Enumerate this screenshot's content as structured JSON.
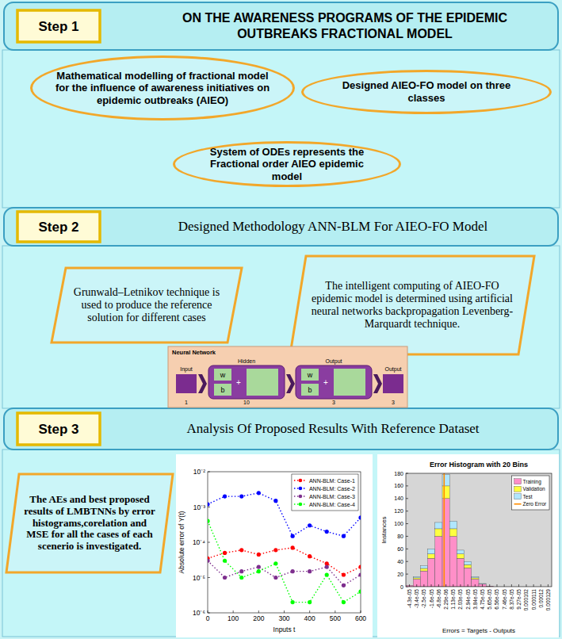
{
  "steps": [
    {
      "label": "Step 1",
      "title": "ON THE AWARENESS PROGRAMS OF THE EPIDEMIC OUTBREAKS FRACTIONAL MODEL",
      "boxes": [
        "Mathematical modelling of fractional model for the influence of awareness initiatives on epidemic outbreaks (AIEO)",
        "Designed AIEO-FO model on three classes",
        "System of ODEs represents the Fractional order AIEO epidemic model"
      ]
    },
    {
      "label": "Step 2",
      "title": "Designed Methodology ANN-BLM For AIEO-FO  Model",
      "boxes": [
        "Grunwald–Letnikov technique is used to produce the reference solution for different cases",
        "The intelligent computing of AIEO-FO epidemic model is determined using artificial neural networks backpropagation Levenberg-Marquardt technique."
      ]
    },
    {
      "label": "Step 3",
      "title": "Analysis Of Proposed Results With Reference Dataset",
      "boxes": [
        "The AEs and best proposed results of LMBTNNs by error histograms,corelation and MSE for all the cases of each scenerio is investigated."
      ]
    }
  ],
  "network": {
    "title": "Neural Network",
    "layers": [
      {
        "label": "Input",
        "size": 1
      },
      {
        "label": "Hidden",
        "size": 10,
        "weight": "w",
        "bias": "b",
        "operator": "+"
      },
      {
        "label": "Output",
        "size": 3,
        "weight": "w",
        "bias": "b",
        "operator": "+"
      },
      {
        "label": "Output",
        "size": 3
      }
    ]
  },
  "chart_data": [
    {
      "type": "line",
      "xlabel": "Inputs t",
      "ylabel": "Absolute error of Y(t)",
      "x": [
        0,
        67,
        133,
        200,
        267,
        333,
        400,
        467,
        533,
        600
      ],
      "xlim": [
        0,
        600
      ],
      "xticks": [
        0,
        100,
        200,
        300,
        400,
        500,
        600
      ],
      "ylim": [
        1e-06,
        0.01
      ],
      "yticks": [
        {
          "value": 1e-06,
          "label": "10⁻⁶"
        },
        {
          "value": 1e-05,
          "label": "10⁻⁵"
        },
        {
          "value": 0.0001,
          "label": "10⁻⁴"
        },
        {
          "value": 0.001,
          "label": "10⁻³"
        },
        {
          "value": 0.01,
          "label": "10⁻²"
        }
      ],
      "log": "y",
      "grid": false,
      "legend": "upper right",
      "line_style": "dotted",
      "marker": "circle",
      "series": [
        {
          "name": "ANN-BLM: Case-1",
          "color": "#ff0000",
          "values": [
            3.5e-05,
            5e-05,
            6e-05,
            4.5e-05,
            6e-05,
            7e-05,
            4e-05,
            2.5e-05,
            1.2e-05,
            2e-05
          ]
        },
        {
          "name": "ANN-BLM: Case-2",
          "color": "#0000ff",
          "values": [
            0.0012,
            0.002,
            0.002,
            0.0025,
            0.0015,
            0.00015,
            0.0003,
            0.0002,
            0.00015,
            0.0005
          ]
        },
        {
          "name": "ANN-BLM: Case-3",
          "color": "#7e2f8e",
          "values": [
            3e-05,
            1e-05,
            1.5e-05,
            2e-05,
            1e-05,
            1.5e-05,
            1.5e-05,
            2e-05,
            6e-06,
            1.2e-05
          ]
        },
        {
          "name": "ANN-BLM: Case-4",
          "color": "#00ff00",
          "values": [
            0.0004,
            3e-05,
            1e-05,
            1.5e-05,
            2.5e-05,
            2e-06,
            2e-06,
            1.2e-05,
            2e-06,
            4e-06
          ]
        }
      ]
    },
    {
      "type": "histogram",
      "title": "Error Histogram with 20 Bins",
      "xlabel": "Errors = Targets - Outputs",
      "ylabel": "Instances",
      "bins": [
        -4.75e-05,
        -3.845e-05,
        -2.94e-05,
        -2.035e-05,
        -1.13e-05,
        -2.25e-06,
        6.8e-06,
        1.585e-05,
        2.49e-05,
        3.395e-05,
        4.3e-05,
        5.205e-05,
        6.11e-05,
        7.015e-05,
        7.92e-05,
        8.825e-05,
        9.73e-05,
        0.00010635,
        0.0001154,
        0.00012445,
        0.0001335
      ],
      "xlim": [
        -4.75e-05,
        0.0001335
      ],
      "xticks": [
        {
          "value": -4.3e-05,
          "label": "-4.3e-05"
        },
        {
          "value": -3.4e-05,
          "label": "-3.4e-05"
        },
        {
          "value": -2.5e-05,
          "label": "-2.5e-05"
        },
        {
          "value": -1.6e-05,
          "label": "-1.6e-05"
        },
        {
          "value": -6.8e-06,
          "label": "-6.8e-06"
        },
        {
          "value": 2.29e-06,
          "label": "2.29e-06"
        },
        {
          "value": 1.13e-05,
          "label": "1.13e-05"
        },
        {
          "value": 2.03e-05,
          "label": "2.03e-05"
        },
        {
          "value": 2.94e-05,
          "label": "2.94e-05"
        },
        {
          "value": 3.84e-05,
          "label": "3.84e-05"
        },
        {
          "value": 4.75e-05,
          "label": "4.75e-05"
        },
        {
          "value": 5.65e-05,
          "label": "5.65e-05"
        },
        {
          "value": 6.56e-05,
          "label": "6.56e-05"
        },
        {
          "value": 7.46e-05,
          "label": "7.46e-05"
        },
        {
          "value": 8.37e-05,
          "label": "8.37e-05"
        },
        {
          "value": 9.27e-05,
          "label": "9.27e-05"
        },
        {
          "value": 0.000102,
          "label": "0.000102"
        },
        {
          "value": 0.000111,
          "label": "0.000111"
        },
        {
          "value": 0.00012,
          "label": "0.00012"
        },
        {
          "value": 0.000129,
          "label": "0.000129"
        }
      ],
      "ylim": [
        0,
        180
      ],
      "yticks": [
        0,
        20,
        40,
        60,
        80,
        100,
        120,
        140,
        160,
        180
      ],
      "stacked": true,
      "grid": false,
      "legend": "upper right",
      "series": [
        {
          "name": "Training",
          "color": "#ff8fc8",
          "values": [
            2,
            12,
            25,
            45,
            80,
            140,
            80,
            45,
            30,
            12,
            4,
            1,
            0,
            0,
            0,
            0,
            0,
            0,
            0,
            0
          ]
        },
        {
          "name": "Validation",
          "color": "#ffff40",
          "values": [
            0,
            2,
            4,
            7,
            12,
            20,
            12,
            7,
            5,
            2,
            0,
            0,
            0,
            0,
            0,
            0,
            0,
            0,
            0,
            0
          ]
        },
        {
          "name": "Test",
          "color": "#b0e6ff",
          "values": [
            0,
            2,
            4,
            8,
            10,
            18,
            12,
            6,
            5,
            2,
            1,
            0,
            0,
            0,
            0,
            0,
            0,
            0,
            0,
            0
          ]
        }
      ],
      "reference_line": {
        "name": "Zero Error",
        "x": 0,
        "color": "#ff8c00"
      }
    }
  ]
}
